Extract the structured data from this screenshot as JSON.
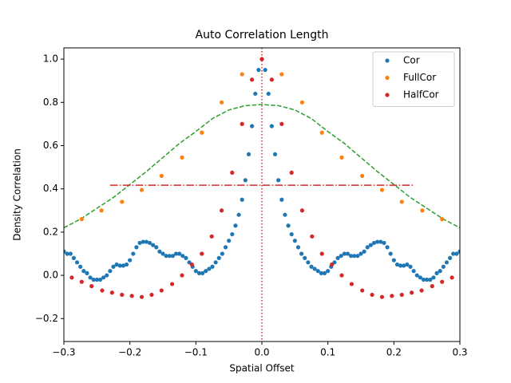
{
  "chart_data": {
    "type": "scatter",
    "title": "Auto Correlation Length",
    "x_label": "Spatial Offset",
    "y_label": "Density Correlation",
    "xlim": [
      -0.3,
      0.3
    ],
    "ylim": [
      -0.306,
      1.052
    ],
    "xticks": [
      {
        "value": -0.3,
        "label": "−0.3"
      },
      {
        "value": -0.2,
        "label": "−0.2"
      },
      {
        "value": -0.1,
        "label": "−0.1"
      },
      {
        "value": 0,
        "label": "0.0"
      },
      0.1,
      0.2,
      0.3
    ],
    "yticks": [
      {
        "value": -0.2,
        "label": "−0.2"
      },
      {
        "value": 0,
        "label": "0.0"
      },
      0.2,
      0.4,
      0.6,
      0.8,
      {
        "value": 1,
        "label": "1.0"
      }
    ],
    "grid": false,
    "legend": "upper right",
    "series": [
      {
        "name": "Cor",
        "color": "#1f77b4",
        "x": [
          -0.3,
          -0.295,
          -0.29,
          -0.285,
          -0.28,
          -0.275,
          -0.27,
          -0.265,
          -0.26,
          -0.255,
          -0.25,
          -0.245,
          -0.24,
          -0.235,
          -0.23,
          -0.225,
          -0.22,
          -0.215,
          -0.21,
          -0.205,
          -0.2,
          -0.195,
          -0.19,
          -0.185,
          -0.18,
          -0.175,
          -0.17,
          -0.165,
          -0.16,
          -0.155,
          -0.15,
          -0.145,
          -0.14,
          -0.135,
          -0.13,
          -0.125,
          -0.12,
          -0.115,
          -0.11,
          -0.105,
          -0.1,
          -0.095,
          -0.09,
          -0.085,
          -0.08,
          -0.075,
          -0.07,
          -0.065,
          -0.06,
          -0.055,
          -0.05,
          -0.045,
          -0.04,
          -0.035,
          -0.03,
          -0.025,
          -0.02,
          -0.015,
          -0.01,
          -0.005,
          0,
          0.005,
          0.01,
          0.015,
          0.02,
          0.025,
          0.03,
          0.035,
          0.04,
          0.045,
          0.05,
          0.055,
          0.06,
          0.065,
          0.07,
          0.075,
          0.08,
          0.085,
          0.09,
          0.095,
          0.1,
          0.105,
          0.11,
          0.115,
          0.12,
          0.125,
          0.13,
          0.135,
          0.14,
          0.145,
          0.15,
          0.155,
          0.16,
          0.165,
          0.17,
          0.175,
          0.18,
          0.185,
          0.19,
          0.195,
          0.2,
          0.205,
          0.21,
          0.215,
          0.22,
          0.225,
          0.23,
          0.235,
          0.24,
          0.245,
          0.25,
          0.255,
          0.26,
          0.265,
          0.27,
          0.275,
          0.28,
          0.285,
          0.29,
          0.295,
          0.3
        ],
        "values": [
          0.11,
          0.1,
          0.1,
          0.08,
          0.06,
          0.04,
          0.02,
          0.01,
          -0.01,
          -0.02,
          -0.02,
          -0.02,
          -0.01,
          0.0,
          0.02,
          0.04,
          0.05,
          0.045,
          0.045,
          0.05,
          0.07,
          0.1,
          0.13,
          0.15,
          0.155,
          0.155,
          0.15,
          0.14,
          0.13,
          0.11,
          0.1,
          0.09,
          0.09,
          0.09,
          0.1,
          0.1,
          0.09,
          0.08,
          0.06,
          0.04,
          0.02,
          0.01,
          0.01,
          0.02,
          0.03,
          0.04,
          0.06,
          0.08,
          0.1,
          0.13,
          0.16,
          0.19,
          0.23,
          0.28,
          0.35,
          0.44,
          0.56,
          0.69,
          0.84,
          0.95,
          1.0,
          0.95,
          0.84,
          0.69,
          0.56,
          0.44,
          0.35,
          0.28,
          0.23,
          0.19,
          0.16,
          0.13,
          0.1,
          0.08,
          0.06,
          0.04,
          0.03,
          0.02,
          0.01,
          0.01,
          0.02,
          0.04,
          0.06,
          0.08,
          0.09,
          0.1,
          0.1,
          0.09,
          0.09,
          0.09,
          0.1,
          0.11,
          0.13,
          0.14,
          0.15,
          0.155,
          0.155,
          0.15,
          0.13,
          0.1,
          0.07,
          0.05,
          0.045,
          0.045,
          0.05,
          0.04,
          0.02,
          0.0,
          -0.01,
          -0.02,
          -0.02,
          -0.02,
          -0.01,
          0.01,
          0.02,
          0.04,
          0.06,
          0.08,
          0.1,
          0.1,
          0.11
        ]
      },
      {
        "name": "FullCor",
        "color": "#ff7f0e",
        "x": [
          -0.273,
          -0.243,
          -0.212,
          -0.182,
          -0.152,
          -0.121,
          -0.091,
          -0.061,
          -0.03,
          0,
          0.03,
          0.061,
          0.091,
          0.121,
          0.152,
          0.182,
          0.212,
          0.243,
          0.273
        ],
        "values": [
          0.26,
          0.3,
          0.34,
          0.395,
          0.46,
          0.545,
          0.66,
          0.8,
          0.93,
          1.0,
          0.93,
          0.8,
          0.66,
          0.545,
          0.46,
          0.395,
          0.34,
          0.3,
          0.26
        ]
      },
      {
        "name": "HalfCor",
        "color": "#d62728",
        "x": [
          -0.288,
          -0.273,
          -0.258,
          -0.242,
          -0.227,
          -0.212,
          -0.197,
          -0.182,
          -0.167,
          -0.152,
          -0.136,
          -0.121,
          -0.106,
          -0.091,
          -0.076,
          -0.061,
          -0.045,
          -0.03,
          -0.015,
          0,
          0.015,
          0.03,
          0.045,
          0.061,
          0.076,
          0.091,
          0.106,
          0.121,
          0.136,
          0.152,
          0.167,
          0.182,
          0.197,
          0.212,
          0.227,
          0.242,
          0.258,
          0.273,
          0.288
        ],
        "values": [
          -0.01,
          -0.03,
          -0.05,
          -0.07,
          -0.08,
          -0.09,
          -0.095,
          -0.1,
          -0.09,
          -0.07,
          -0.04,
          0.0,
          0.05,
          0.1,
          0.18,
          0.3,
          0.475,
          0.7,
          0.905,
          1.0,
          0.905,
          0.7,
          0.475,
          0.3,
          0.18,
          0.1,
          0.05,
          0.0,
          -0.04,
          -0.07,
          -0.09,
          -0.1,
          -0.095,
          -0.09,
          -0.08,
          -0.07,
          -0.05,
          -0.03,
          -0.01
        ]
      }
    ],
    "fit_line": {
      "color": "#2ca02c",
      "x": [
        -0.3,
        -0.275,
        -0.25,
        -0.225,
        -0.2,
        -0.175,
        -0.15,
        -0.125,
        -0.1,
        -0.075,
        -0.05,
        -0.025,
        0,
        0.025,
        0.05,
        0.075,
        0.1,
        0.125,
        0.15,
        0.175,
        0.2,
        0.225,
        0.25,
        0.275,
        0.3
      ],
      "values": [
        0.22,
        0.26,
        0.31,
        0.36,
        0.42,
        0.48,
        0.545,
        0.61,
        0.665,
        0.725,
        0.765,
        0.785,
        0.79,
        0.785,
        0.765,
        0.725,
        0.665,
        0.61,
        0.545,
        0.48,
        0.42,
        0.36,
        0.31,
        0.26,
        0.22
      ]
    },
    "threshold_line": {
      "color": "#d62728",
      "x": [
        -0.23,
        0.23
      ],
      "values": [
        0.417,
        0.417
      ]
    },
    "center_line": {
      "color": "#d62728",
      "x": 0
    }
  }
}
